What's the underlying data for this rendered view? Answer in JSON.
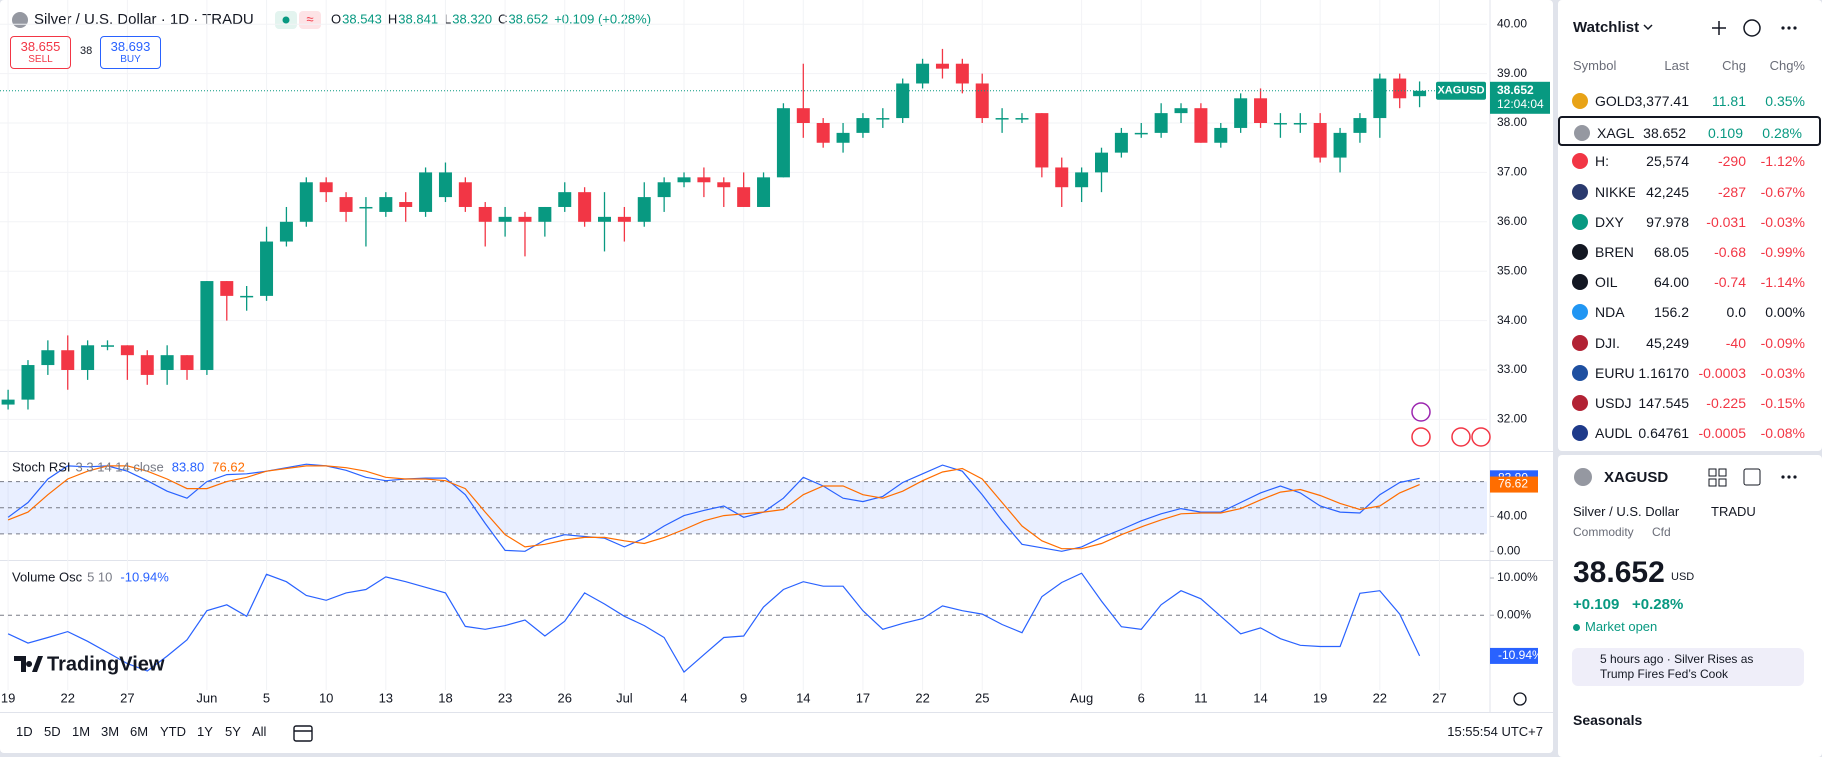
{
  "header": {
    "title": "Silver / U.S. Dollar · 1D · TRADU",
    "status_icon": "≈",
    "ohlc_letters": [
      "O",
      "H",
      "L",
      "C"
    ],
    "ohlc_values": [
      "38.543",
      "38.841",
      "38.320",
      "38.652"
    ],
    "change": "+0.109 (+0.28%)"
  },
  "trade": {
    "sell_price": "38.655",
    "sell": "SELL",
    "spread": "38",
    "buy_price": "38.693",
    "buy": "BUY"
  },
  "chart": {
    "type": "candlestick",
    "categories": [
      "19",
      null,
      null,
      "22",
      null,
      null,
      "27",
      null,
      null,
      null,
      "Jun",
      null,
      null,
      "5",
      null,
      null,
      "10",
      null,
      null,
      "13",
      null,
      null,
      "18",
      null,
      null,
      "23",
      null,
      null,
      "26",
      null,
      null,
      "Jul",
      null,
      null,
      "4",
      null,
      null,
      "9",
      null,
      null,
      "14",
      null,
      null,
      "17",
      null,
      null,
      "22",
      null,
      null,
      "25",
      null,
      null,
      null,
      null,
      "Aug",
      null,
      null,
      "6",
      null,
      null,
      "11",
      null,
      null,
      "14",
      null,
      null,
      "19",
      null,
      null,
      "22",
      null,
      null,
      "27"
    ],
    "ohlc": [
      [
        32.3,
        32.6,
        32.2,
        32.4
      ],
      [
        32.4,
        33.2,
        32.2,
        33.1
      ],
      [
        33.1,
        33.6,
        32.9,
        33.4
      ],
      [
        33.4,
        33.7,
        32.6,
        33.0
      ],
      [
        33.0,
        33.6,
        32.8,
        33.5
      ],
      [
        33.5,
        33.6,
        33.4,
        33.5
      ],
      [
        33.5,
        33.5,
        32.8,
        33.3
      ],
      [
        33.3,
        33.4,
        32.7,
        32.9
      ],
      [
        33.0,
        33.5,
        32.7,
        33.3
      ],
      [
        33.3,
        33.3,
        32.8,
        33.0
      ],
      [
        33.0,
        34.8,
        32.9,
        34.8
      ],
      [
        34.8,
        34.8,
        34.0,
        34.5
      ],
      [
        34.5,
        34.7,
        34.2,
        34.5
      ],
      [
        34.5,
        35.9,
        34.4,
        35.6
      ],
      [
        35.6,
        36.3,
        35.5,
        36.0
      ],
      [
        36.0,
        36.9,
        35.9,
        36.8
      ],
      [
        36.8,
        36.9,
        36.4,
        36.6
      ],
      [
        36.5,
        36.6,
        36.0,
        36.2
      ],
      [
        36.3,
        36.5,
        35.5,
        36.3
      ],
      [
        36.2,
        36.6,
        36.1,
        36.5
      ],
      [
        36.4,
        36.6,
        36.0,
        36.3
      ],
      [
        36.2,
        37.1,
        36.1,
        37.0
      ],
      [
        36.5,
        37.2,
        36.4,
        37.0
      ],
      [
        36.8,
        36.9,
        36.2,
        36.3
      ],
      [
        36.3,
        36.4,
        35.5,
        36.0
      ],
      [
        36.0,
        36.3,
        35.7,
        36.1
      ],
      [
        36.1,
        36.2,
        35.3,
        36.0
      ],
      [
        36.0,
        36.3,
        35.7,
        36.3
      ],
      [
        36.3,
        36.8,
        36.2,
        36.6
      ],
      [
        36.6,
        36.7,
        35.9,
        36.0
      ],
      [
        36.0,
        36.6,
        35.4,
        36.1
      ],
      [
        36.1,
        36.3,
        35.6,
        36.0
      ],
      [
        36.0,
        36.8,
        35.9,
        36.5
      ],
      [
        36.5,
        36.9,
        36.2,
        36.8
      ],
      [
        36.8,
        37.0,
        36.7,
        36.9
      ],
      [
        36.9,
        37.1,
        36.5,
        36.8
      ],
      [
        36.8,
        36.9,
        36.3,
        36.7
      ],
      [
        36.7,
        37.0,
        36.3,
        36.3
      ],
      [
        36.3,
        37.0,
        36.3,
        36.9
      ],
      [
        36.9,
        38.4,
        36.9,
        38.3
      ],
      [
        38.3,
        39.2,
        37.7,
        38.0
      ],
      [
        38.0,
        38.1,
        37.5,
        37.6
      ],
      [
        37.6,
        38.0,
        37.4,
        37.8
      ],
      [
        37.8,
        38.2,
        37.7,
        38.1
      ],
      [
        38.1,
        38.3,
        37.9,
        38.1
      ],
      [
        38.1,
        38.9,
        38.0,
        38.8
      ],
      [
        38.8,
        39.3,
        38.7,
        39.2
      ],
      [
        39.2,
        39.5,
        38.9,
        39.1
      ],
      [
        39.2,
        39.3,
        38.6,
        38.8
      ],
      [
        38.8,
        39.0,
        38.0,
        38.1
      ],
      [
        38.1,
        38.3,
        37.8,
        38.1
      ],
      [
        38.1,
        38.2,
        38.0,
        38.1
      ],
      [
        38.2,
        38.2,
        36.9,
        37.1
      ],
      [
        37.1,
        37.3,
        36.3,
        36.7
      ],
      [
        36.7,
        37.1,
        36.4,
        37.0
      ],
      [
        37.0,
        37.5,
        36.6,
        37.4
      ],
      [
        37.4,
        37.9,
        37.3,
        37.8
      ],
      [
        37.8,
        38.0,
        37.7,
        37.8
      ],
      [
        37.8,
        38.4,
        37.7,
        38.2
      ],
      [
        38.2,
        38.4,
        38.0,
        38.3
      ],
      [
        38.3,
        38.4,
        37.6,
        37.6
      ],
      [
        37.6,
        38.0,
        37.5,
        37.9
      ],
      [
        37.9,
        38.6,
        37.8,
        38.5
      ],
      [
        38.5,
        38.7,
        37.9,
        38.0
      ],
      [
        38.0,
        38.2,
        37.7,
        38.0
      ],
      [
        38.0,
        38.2,
        37.8,
        38.0
      ],
      [
        38.0,
        38.2,
        37.2,
        37.3
      ],
      [
        37.3,
        37.9,
        37.0,
        37.8
      ],
      [
        37.8,
        38.2,
        37.6,
        38.1
      ],
      [
        38.1,
        39.0,
        37.7,
        38.9
      ],
      [
        38.9,
        39.0,
        38.3,
        38.5
      ],
      [
        38.543,
        38.841,
        38.32,
        38.652
      ],
      null
    ],
    "ylim": [
      31.36,
      40.49
    ],
    "yticks": [
      {
        "value": 32,
        "label": "32.00"
      },
      {
        "value": 33,
        "label": "33.00"
      },
      {
        "value": 34,
        "label": "34.00"
      },
      {
        "value": 35,
        "label": "35.00"
      },
      {
        "value": 36,
        "label": "36.00"
      },
      {
        "value": 37,
        "label": "37.00"
      },
      {
        "value": 38,
        "label": "38.00"
      },
      {
        "value": 39,
        "label": "39.00"
      },
      {
        "value": 40,
        "label": "40.00"
      }
    ],
    "grid": true,
    "up_color": "#089981",
    "down_color": "#f23645",
    "last_badge": {
      "symbol": "XAGUSD",
      "price": "38.652",
      "countdown": "12:04:04"
    },
    "watermark": "TradingView",
    "indicators": [
      {
        "type": "line",
        "name": "Stoch RSI",
        "params": "3 3 14 14 close",
        "ylim": [
          -10,
          114
        ],
        "yticks": [
          {
            "value": 40,
            "label": "40.00"
          },
          {
            "value": 0,
            "label": "0.00"
          }
        ],
        "levels": [
          80,
          50,
          20
        ],
        "fill": "#2962ff",
        "series": [
          {
            "color": "#2962ff",
            "last_label": "83.80",
            "values": [
              39,
              56,
              83,
              98,
              97,
              98,
              92,
              81,
              69,
              61,
              80,
              88,
              89,
              92,
              96,
              100,
              98,
              93,
              85,
              81,
              83,
              84,
              84,
              65,
              32,
              1,
              0,
              13,
              19,
              17,
              15,
              5,
              15,
              29,
              41,
              47,
              52,
              39,
              45,
              61,
              85,
              75,
              61,
              57,
              63,
              79,
              89,
              99,
              92,
              65,
              35,
              8,
              4,
              0,
              5,
              16,
              25,
              35,
              43,
              49,
              45,
              45,
              56,
              67,
              75,
              67,
              52,
              45,
              44,
              65,
              79,
              83.8,
              null
            ]
          },
          {
            "color": "#ff6d00",
            "last_label": "76.62",
            "values": [
              36,
              45,
              65,
              83,
              92,
              98,
              98,
              92,
              83,
              72,
              72,
              80,
              85,
              92,
              95,
              98,
              98,
              96,
              92,
              85,
              83,
              83,
              81,
              72,
              45,
              19,
              5,
              8,
              13,
              16,
              16,
              12,
              9,
              16,
              25,
              35,
              41,
              43,
              45,
              48,
              65,
              75,
              75,
              65,
              61,
              69,
              81,
              91,
              95,
              83,
              56,
              29,
              12,
              3,
              3,
              9,
              19,
              28,
              36,
              43,
              44,
              44,
              49,
              59,
              68,
              71,
              64,
              55,
              48,
              52,
              67,
              76.62,
              null
            ]
          }
        ]
      },
      {
        "type": "line",
        "name": "Volume Osc",
        "params": "5 10",
        "ylim": [
          -20.1,
          14.3
        ],
        "yticks": [
          {
            "value": 10,
            "label": "10.00%"
          },
          {
            "value": 0,
            "label": "0.00%"
          }
        ],
        "levels": [
          0
        ],
        "series": [
          {
            "color": "#2962ff",
            "last_label": "-10.94%",
            "values": [
              -5,
              -7.5,
              -6,
              -4.4,
              -7,
              -10,
              -13,
              -15,
              -11,
              -6.6,
              1.2,
              2.8,
              -0.3,
              11,
              9,
              5.3,
              4,
              6,
              6.9,
              10.3,
              9,
              7.5,
              6,
              -3,
              -3.8,
              -2.8,
              -1.3,
              -5.6,
              -1.6,
              6,
              3,
              -0.3,
              -2.8,
              -6,
              -15.3,
              -10.6,
              -6,
              -5.6,
              2.2,
              6.9,
              9,
              7.8,
              7.8,
              1.2,
              -3.8,
              -2.2,
              -0.9,
              2.5,
              1.2,
              0.3,
              -2.5,
              -4.7,
              5,
              8.8,
              11.3,
              3.8,
              -3.1,
              -3.8,
              2.8,
              6.6,
              4.4,
              -0.3,
              -5,
              -3.4,
              -6.3,
              -8.1,
              -8.4,
              -8.4,
              5.9,
              6.6,
              0.3,
              -10.94,
              null
            ]
          }
        ]
      }
    ]
  },
  "toolbar": {
    "ranges": [
      "1D",
      "5D",
      "1M",
      "3M",
      "6M",
      "YTD",
      "1Y",
      "5Y",
      "All"
    ],
    "clock": "15:55:54 UTC+7"
  },
  "watchlist": {
    "title": "Watchlist",
    "columns": [
      "Symbol",
      "Last",
      "Chg",
      "Chg%"
    ],
    "selected": 1,
    "colors": {
      "up": "#089981",
      "down": "#f23645",
      "flat": "#131722"
    },
    "rows": [
      {
        "symbol": "GOLD",
        "last": "3,377.41",
        "chg": "11.81",
        "pct": "0.35%",
        "trend": "up",
        "icon": "#e8a317"
      },
      {
        "symbol": "XAGL",
        "last": "38.652",
        "chg": "0.109",
        "pct": "0.28%",
        "trend": "up",
        "icon": "#9598a1"
      },
      {
        "symbol": "H:",
        "last": "25,574",
        "chg": "-290",
        "pct": "-1.12%",
        "trend": "down",
        "icon": "#f23645"
      },
      {
        "symbol": "NIKKE",
        "last": "42,245",
        "chg": "-287",
        "pct": "-0.67%",
        "trend": "down",
        "icon": "#2a3a6e"
      },
      {
        "symbol": "DXY",
        "last": "97.978",
        "chg": "-0.031",
        "pct": "-0.03%",
        "trend": "down",
        "icon": "#089981"
      },
      {
        "symbol": "BREN",
        "last": "68.05",
        "chg": "-0.68",
        "pct": "-0.99%",
        "trend": "down",
        "icon": "#131722"
      },
      {
        "symbol": "OIL",
        "last": "64.00",
        "chg": "-0.74",
        "pct": "-1.14%",
        "trend": "down",
        "icon": "#131722"
      },
      {
        "symbol": "NDA",
        "last": "156.2",
        "chg": "0.0",
        "pct": "0.00%",
        "trend": "flat",
        "icon": "#2196f3"
      },
      {
        "symbol": "DJI.",
        "last": "45,249",
        "chg": "-40",
        "pct": "-0.09%",
        "trend": "down",
        "icon": "#b22234"
      },
      {
        "symbol": "EURU",
        "last": "1.16170",
        "chg": "-0.0003",
        "pct": "-0.03%",
        "trend": "down",
        "icon": "#1e4fa0"
      },
      {
        "symbol": "USDJ",
        "last": "147.545",
        "chg": "-0.225",
        "pct": "-0.15%",
        "trend": "down",
        "icon": "#b22234"
      },
      {
        "symbol": "AUDL",
        "last": "0.64761",
        "chg": "-0.0005",
        "pct": "-0.08%",
        "trend": "down",
        "icon": "#1e3a8a"
      }
    ]
  },
  "details": {
    "symbol": "XAGUSD",
    "name": "Silver / U.S. Dollar",
    "exchange": "TRADU",
    "category": "Commodity",
    "kind": "Cfd",
    "price": "38.652",
    "currency": "USD",
    "change": "+0.109",
    "change_pct": "+0.28%",
    "status": "Market open",
    "news_time": "5 hours ago",
    "news_headline": "Silver Rises as Trump Fires Fed’s Cook",
    "section": "Seasonals"
  }
}
